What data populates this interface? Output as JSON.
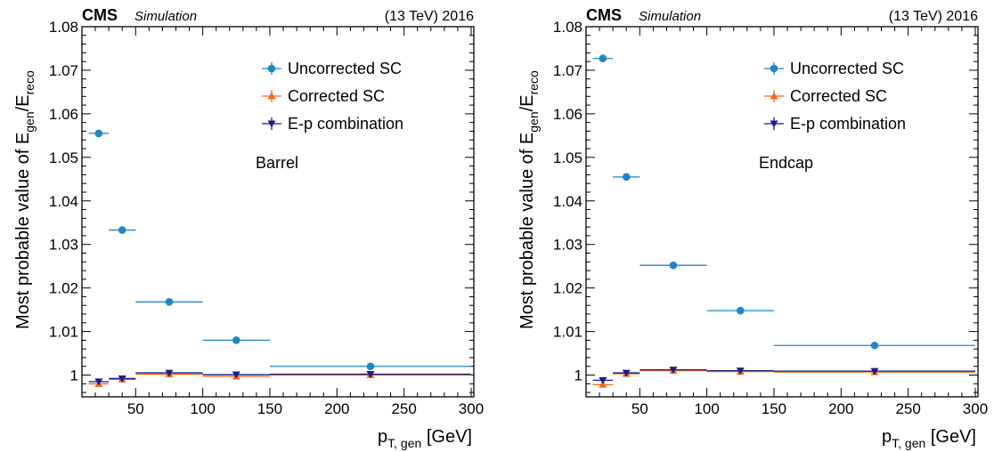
{
  "chart_data": [
    {
      "type": "scatter",
      "experiment": "CMS",
      "status": "Simulation",
      "energy_label": "(13 TeV) 2016",
      "region": "Barrel",
      "ylabel": {
        "main": "Most probable value of E",
        "sub1": "gen",
        "slash": "/E",
        "sub2": "reco"
      },
      "xlabel": {
        "main": "p",
        "sub": "T, gen",
        "unit": " [GeV]"
      },
      "xlim": [
        10,
        302
      ],
      "ylim": [
        0.995,
        1.08
      ],
      "xticks": [
        "50",
        "100",
        "150",
        "200",
        "250",
        "300"
      ],
      "yticks": [
        "1",
        "1.01",
        "1.02",
        "1.03",
        "1.04",
        "1.05",
        "1.06",
        "1.07",
        "1.08"
      ],
      "legend_position": "top-right",
      "series": [
        {
          "name": "Uncorrected SC",
          "color": "#1f86c4",
          "marker": "circle",
          "points": [
            {
              "x": 22.5,
              "xlo": 15,
              "xhi": 30,
              "y": 1.0555
            },
            {
              "x": 40,
              "xlo": 30,
              "xhi": 50,
              "y": 1.0333
            },
            {
              "x": 75,
              "xlo": 50,
              "xhi": 100,
              "y": 1.0168
            },
            {
              "x": 125,
              "xlo": 100,
              "xhi": 150,
              "y": 1.008
            },
            {
              "x": 225,
              "xlo": 150,
              "xhi": 300,
              "y": 1.002
            }
          ]
        },
        {
          "name": "Corrected SC",
          "color": "#f26b1d",
          "marker": "triangle-up",
          "points": [
            {
              "x": 22.5,
              "xlo": 15,
              "xhi": 30,
              "y": 0.998
            },
            {
              "x": 40,
              "xlo": 30,
              "xhi": 50,
              "y": 0.999
            },
            {
              "x": 75,
              "xlo": 50,
              "xhi": 100,
              "y": 1.0002
            },
            {
              "x": 125,
              "xlo": 100,
              "xhi": 150,
              "y": 0.9997
            },
            {
              "x": 225,
              "xlo": 150,
              "xhi": 300,
              "y": 1.0
            }
          ]
        },
        {
          "name": "E-p combination",
          "color": "#1c1c8c",
          "marker": "triangle-down",
          "points": [
            {
              "x": 22.5,
              "xlo": 15,
              "xhi": 30,
              "y": 0.9985
            },
            {
              "x": 40,
              "xlo": 30,
              "xhi": 50,
              "y": 0.9992
            },
            {
              "x": 75,
              "xlo": 50,
              "xhi": 100,
              "y": 1.0005
            },
            {
              "x": 125,
              "xlo": 100,
              "xhi": 150,
              "y": 1.0001
            },
            {
              "x": 225,
              "xlo": 150,
              "xhi": 300,
              "y": 1.0002
            }
          ]
        }
      ]
    },
    {
      "type": "scatter",
      "experiment": "CMS",
      "status": "Simulation",
      "energy_label": "(13 TeV) 2016",
      "region": "Endcap",
      "ylabel": {
        "main": "Most probable value of E",
        "sub1": "gen",
        "slash": "/E",
        "sub2": "reco"
      },
      "xlabel": {
        "main": "p",
        "sub": "T, gen",
        "unit": " [GeV]"
      },
      "xlim": [
        10,
        302
      ],
      "ylim": [
        0.995,
        1.08
      ],
      "xticks": [
        "50",
        "100",
        "150",
        "200",
        "250",
        "300"
      ],
      "yticks": [
        "1",
        "1.01",
        "1.02",
        "1.03",
        "1.04",
        "1.05",
        "1.06",
        "1.07",
        "1.08"
      ],
      "legend_position": "top-right",
      "series": [
        {
          "name": "Uncorrected SC",
          "color": "#1f86c4",
          "marker": "circle",
          "points": [
            {
              "x": 22.5,
              "xlo": 15,
              "xhi": 30,
              "y": 1.0727
            },
            {
              "x": 40,
              "xlo": 30,
              "xhi": 50,
              "y": 1.0455
            },
            {
              "x": 75,
              "xlo": 50,
              "xhi": 100,
              "y": 1.0252
            },
            {
              "x": 125,
              "xlo": 100,
              "xhi": 150,
              "y": 1.0148
            },
            {
              "x": 225,
              "xlo": 150,
              "xhi": 300,
              "y": 1.0068
            }
          ]
        },
        {
          "name": "Corrected SC",
          "color": "#f26b1d",
          "marker": "triangle-up",
          "points": [
            {
              "x": 22.5,
              "xlo": 15,
              "xhi": 30,
              "y": 0.9978
            },
            {
              "x": 40,
              "xlo": 30,
              "xhi": 50,
              "y": 1.0003
            },
            {
              "x": 75,
              "xlo": 50,
              "xhi": 100,
              "y": 1.001
            },
            {
              "x": 125,
              "xlo": 100,
              "xhi": 150,
              "y": 1.0008
            },
            {
              "x": 225,
              "xlo": 150,
              "xhi": 300,
              "y": 1.0007
            }
          ]
        },
        {
          "name": "E-p combination",
          "color": "#1c1c8c",
          "marker": "triangle-down",
          "points": [
            {
              "x": 22.5,
              "xlo": 15,
              "xhi": 30,
              "y": 0.9988
            },
            {
              "x": 40,
              "xlo": 30,
              "xhi": 50,
              "y": 1.0005
            },
            {
              "x": 75,
              "xlo": 50,
              "xhi": 100,
              "y": 1.0012
            },
            {
              "x": 125,
              "xlo": 100,
              "xhi": 150,
              "y": 1.001
            },
            {
              "x": 225,
              "xlo": 150,
              "xhi": 300,
              "y": 1.0009
            }
          ]
        }
      ]
    }
  ]
}
